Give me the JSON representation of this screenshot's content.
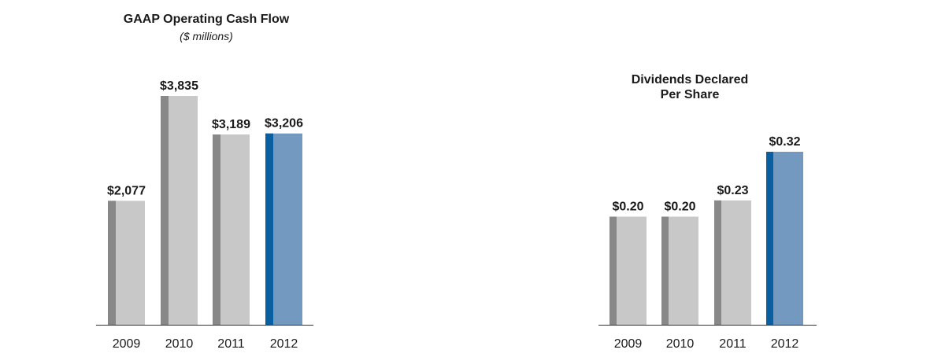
{
  "colors": {
    "bar_shadow": "#888888",
    "bar_fill": "#c8c8c8",
    "highlight_shadow": "#0a5fa0",
    "highlight_fill": "#7399c0",
    "axis": "#333333"
  },
  "chart_data": [
    {
      "type": "bar",
      "title": "GAAP Operating Cash Flow",
      "subtitle": "($ millions)",
      "categories": [
        "2009",
        "2010",
        "2011",
        "2012"
      ],
      "values": [
        2077,
        3835,
        3189,
        3206
      ],
      "value_labels": [
        "$2,077",
        "$3,835",
        "$3,189",
        "$3,206"
      ],
      "highlight_index": 3,
      "ylim": [
        0,
        3835
      ],
      "grid": false
    },
    {
      "type": "bar",
      "title_lines": [
        "Dividends Declared",
        "Per Share"
      ],
      "categories": [
        "2009",
        "2010",
        "2011",
        "2012"
      ],
      "values": [
        0.2,
        0.2,
        0.23,
        0.32
      ],
      "value_labels": [
        "$0.20",
        "$0.20",
        "$0.23",
        "$0.32"
      ],
      "highlight_index": 3,
      "ylim": [
        0,
        0.32
      ],
      "grid": false
    }
  ]
}
